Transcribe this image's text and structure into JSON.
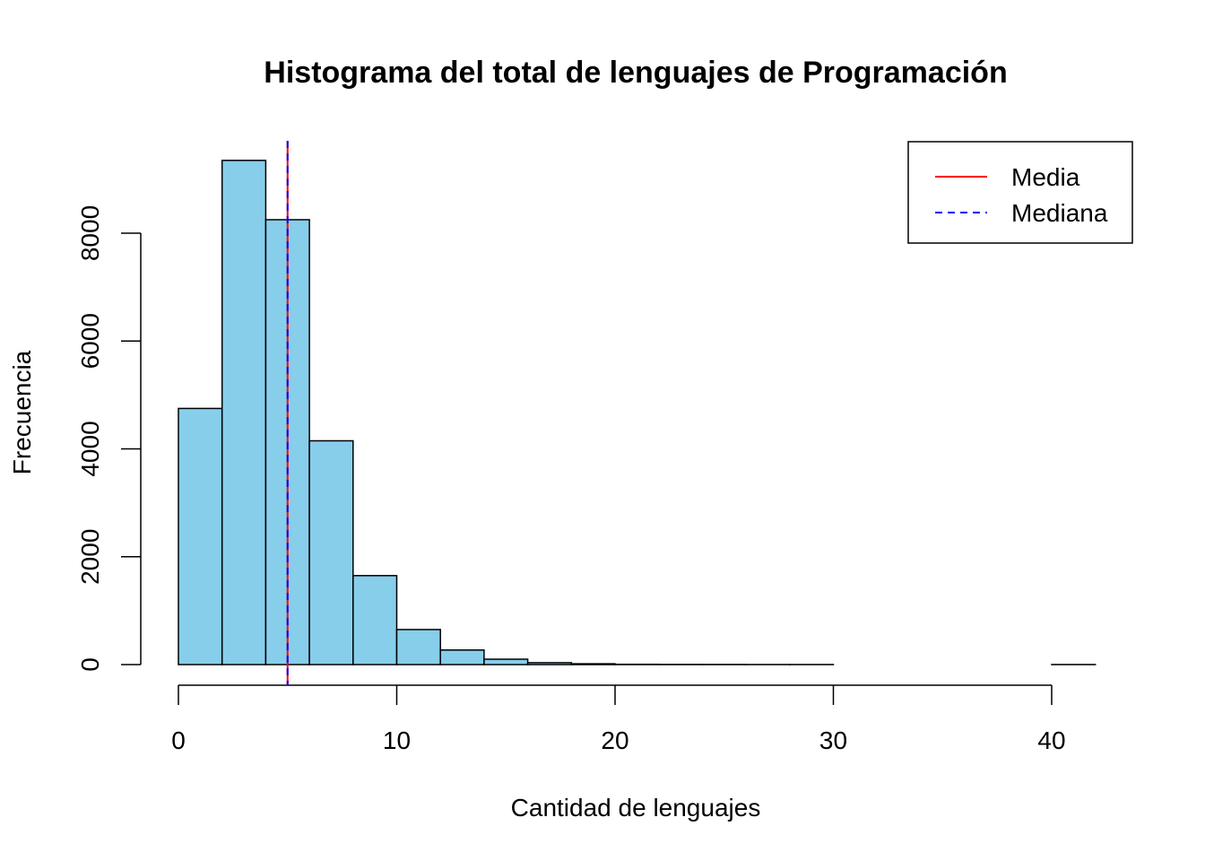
{
  "chart_data": {
    "type": "bar",
    "title": "Histograma del total de lenguajes de Programación",
    "xlabel": "Cantidad de lenguajes",
    "ylabel": "Frecuencia",
    "bins": [
      {
        "x0": 0,
        "x1": 2,
        "count": 4750
      },
      {
        "x0": 2,
        "x1": 4,
        "count": 9350
      },
      {
        "x0": 4,
        "x1": 6,
        "count": 8250
      },
      {
        "x0": 6,
        "x1": 8,
        "count": 4150
      },
      {
        "x0": 8,
        "x1": 10,
        "count": 1650
      },
      {
        "x0": 10,
        "x1": 12,
        "count": 650
      },
      {
        "x0": 12,
        "x1": 14,
        "count": 270
      },
      {
        "x0": 14,
        "x1": 16,
        "count": 100
      },
      {
        "x0": 16,
        "x1": 18,
        "count": 35
      },
      {
        "x0": 18,
        "x1": 20,
        "count": 15
      },
      {
        "x0": 20,
        "x1": 22,
        "count": 5
      },
      {
        "x0": 22,
        "x1": 24,
        "count": 3
      },
      {
        "x0": 24,
        "x1": 26,
        "count": 2
      },
      {
        "x0": 26,
        "x1": 28,
        "count": 1
      },
      {
        "x0": 28,
        "x1": 30,
        "count": 1
      },
      {
        "x0": 30,
        "x1": 32,
        "count": 0
      },
      {
        "x0": 32,
        "x1": 34,
        "count": 0
      },
      {
        "x0": 34,
        "x1": 36,
        "count": 0
      },
      {
        "x0": 36,
        "x1": 38,
        "count": 0
      },
      {
        "x0": 38,
        "x1": 40,
        "count": 0
      },
      {
        "x0": 40,
        "x1": 42,
        "count": 1
      }
    ],
    "xlim": [
      0,
      42
    ],
    "ylim": [
      0,
      9700
    ],
    "xticks": [
      0,
      10,
      20,
      30,
      40
    ],
    "yticks": [
      0,
      2000,
      4000,
      6000,
      8000
    ],
    "bar_color": "#87CEEB",
    "lines": [
      {
        "name": "Media",
        "value": 5.0,
        "color": "#FF0000",
        "style": "solid"
      },
      {
        "name": "Mediana",
        "value": 5.0,
        "color": "#0000FF",
        "style": "dashed"
      }
    ],
    "legend": {
      "placement": "top-right",
      "entries": [
        "Media",
        "Mediana"
      ]
    },
    "grid": false
  }
}
